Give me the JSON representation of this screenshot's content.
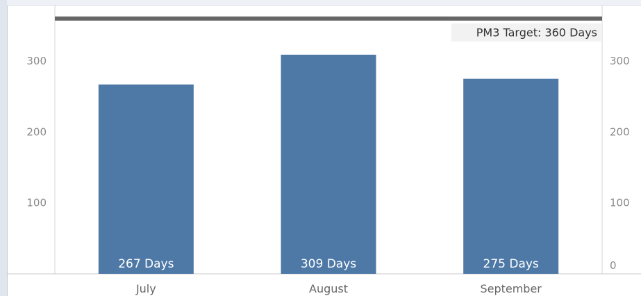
{
  "chart_data": {
    "type": "bar",
    "categories": [
      "July",
      "August",
      "September"
    ],
    "values": [
      267,
      309,
      275
    ],
    "data_labels": [
      "267 Days",
      "309 Days",
      "275 Days"
    ],
    "ylim": [
      0,
      360
    ],
    "yticks_left": [
      "100",
      "200",
      "300"
    ],
    "yticks_right": [
      "0",
      "100",
      "200",
      "300"
    ],
    "reference_line": {
      "value": 360,
      "label": "PM3 Target: 360 Days"
    },
    "grid": false,
    "colors": {
      "bar": "#4e79a7",
      "reference_line": "#666666",
      "reference_label_bg": "#f2f2f2"
    }
  }
}
